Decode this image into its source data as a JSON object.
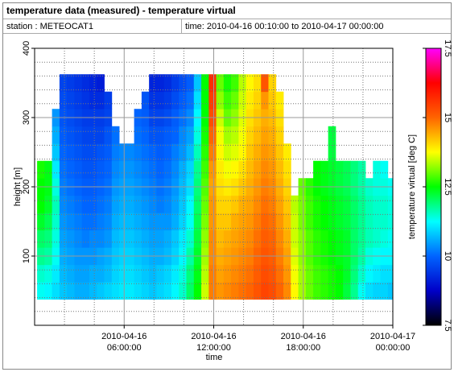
{
  "header": {
    "title": "temperature data (measured) - temperature virtual",
    "station": "station : METEOCAT1",
    "time": "time: 2010-04-16 00:10:00 to 2010-04-17 00:00:00"
  },
  "chart_data": {
    "type": "heatmap",
    "xlabel": "time",
    "ylabel": "height [m]",
    "x": [
      "2010-04-16 00:10:00",
      "2010-04-16 00:40:00",
      "2010-04-16 01:10:00",
      "2010-04-16 01:40:00",
      "2010-04-16 02:10:00",
      "2010-04-16 02:40:00",
      "2010-04-16 03:10:00",
      "2010-04-16 03:40:00",
      "2010-04-16 04:10:00",
      "2010-04-16 04:40:00",
      "2010-04-16 05:10:00",
      "2010-04-16 05:40:00",
      "2010-04-16 06:10:00",
      "2010-04-16 06:40:00",
      "2010-04-16 07:10:00",
      "2010-04-16 07:40:00",
      "2010-04-16 08:10:00",
      "2010-04-16 08:40:00",
      "2010-04-16 09:10:00",
      "2010-04-16 09:40:00",
      "2010-04-16 10:10:00",
      "2010-04-16 10:40:00",
      "2010-04-16 11:10:00",
      "2010-04-16 11:40:00",
      "2010-04-16 12:10:00",
      "2010-04-16 12:40:00",
      "2010-04-16 13:10:00",
      "2010-04-16 13:40:00",
      "2010-04-16 14:10:00",
      "2010-04-16 14:40:00",
      "2010-04-16 15:10:00",
      "2010-04-16 15:40:00",
      "2010-04-16 16:10:00",
      "2010-04-16 16:40:00",
      "2010-04-16 17:10:00",
      "2010-04-16 17:40:00",
      "2010-04-16 18:10:00",
      "2010-04-16 18:40:00",
      "2010-04-16 19:10:00",
      "2010-04-16 19:40:00",
      "2010-04-16 20:10:00",
      "2010-04-16 20:40:00",
      "2010-04-16 21:10:00",
      "2010-04-16 21:40:00",
      "2010-04-16 22:10:00",
      "2010-04-16 22:40:00",
      "2010-04-16 23:10:00",
      "2010-04-16 23:40:00"
    ],
    "y": [
      50,
      75,
      100,
      125,
      150,
      175,
      200,
      225,
      250,
      275,
      300,
      325,
      350
    ],
    "z": [
      [
        11.3,
        11.5,
        11.8,
        12,
        12.3,
        12.5,
        12.5,
        12.6,
        null,
        null,
        null,
        null,
        null
      ],
      [
        11.2,
        11.4,
        11.7,
        11.9,
        12.1,
        12.3,
        12.4,
        12.4,
        null,
        null,
        null,
        null,
        null
      ],
      [
        11,
        11.1,
        11.3,
        11.4,
        11.5,
        11.6,
        11.4,
        11.1,
        10.8,
        10.6,
        10.4,
        null,
        null
      ],
      [
        10.8,
        10.7,
        10.6,
        10.5,
        10.4,
        10.3,
        10.2,
        10.1,
        10,
        9.9,
        9.8,
        9.7,
        9.6
      ],
      [
        10.7,
        10.6,
        10.5,
        10.4,
        10.3,
        10.2,
        10.1,
        10,
        9.9,
        9.8,
        9.7,
        9.6,
        9.5
      ],
      [
        10.6,
        10.5,
        10.4,
        10.3,
        10.2,
        10.1,
        10,
        9.9,
        9.8,
        9.7,
        9.6,
        9.5,
        9.4
      ],
      [
        10.6,
        10.5,
        10.4,
        10.2,
        10.1,
        10,
        9.9,
        9.8,
        9.7,
        9.6,
        9.5,
        9.4,
        9.3
      ],
      [
        10.7,
        10.6,
        10.4,
        10.3,
        10.1,
        10,
        9.9,
        9.8,
        9.7,
        9.6,
        9.5,
        9.3,
        9.2
      ],
      [
        10.8,
        10.6,
        10.5,
        10.3,
        10.2,
        10.1,
        10,
        9.9,
        9.8,
        9.6,
        9.5,
        9.3,
        9.1
      ],
      [
        10.9,
        10.7,
        10.6,
        10.4,
        10.3,
        10.2,
        10.1,
        10,
        9.9,
        9.8,
        9.6,
        9.5,
        null
      ],
      [
        11,
        10.9,
        10.8,
        10.7,
        10.6,
        10.5,
        10.4,
        10.3,
        10.2,
        10.1,
        null,
        null,
        null
      ],
      [
        11.1,
        11,
        10.9,
        10.8,
        10.7,
        10.6,
        10.5,
        10.4,
        10.3,
        null,
        null,
        null,
        null
      ],
      [
        11.1,
        11,
        10.9,
        10.8,
        10.7,
        10.6,
        10.5,
        10.4,
        10.3,
        null,
        null,
        null,
        null
      ],
      [
        11,
        10.9,
        10.8,
        10.7,
        10.6,
        10.5,
        10.4,
        10.3,
        10.2,
        10.1,
        10,
        null,
        null
      ],
      [
        10.9,
        10.8,
        10.7,
        10.6,
        10.5,
        10.4,
        10.3,
        10.2,
        10.1,
        10,
        9.9,
        9.8,
        null
      ],
      [
        10.8,
        10.7,
        10.6,
        10.5,
        10.4,
        10.3,
        10.2,
        10.1,
        10,
        9.8,
        9.6,
        9.4,
        9.2
      ],
      [
        10.9,
        10.8,
        10.6,
        10.5,
        10.4,
        10.2,
        10.1,
        10,
        9.9,
        9.8,
        9.6,
        9.4,
        9.2
      ],
      [
        11,
        10.9,
        10.7,
        10.6,
        10.4,
        10.3,
        10.2,
        10.1,
        10,
        9.9,
        9.7,
        9.5,
        9.3
      ],
      [
        11.2,
        11.1,
        10.9,
        10.8,
        10.6,
        10.5,
        10.4,
        10.3,
        10.2,
        10,
        9.9,
        9.7,
        9.5
      ],
      [
        11.5,
        11.4,
        11.2,
        11.1,
        10.9,
        10.8,
        10.7,
        10.6,
        10.4,
        10.3,
        10.1,
        9.9,
        9.7
      ],
      [
        12,
        11.9,
        11.7,
        11.5,
        11.3,
        11.2,
        11,
        10.9,
        10.7,
        10.5,
        10.3,
        10.1,
        9.9
      ],
      [
        12.5,
        12.4,
        12.3,
        12.2,
        12.1,
        12,
        11.9,
        11.8,
        11.6,
        11.4,
        11.2,
        11,
        10.8
      ],
      [
        13.5,
        13.4,
        13.3,
        13.2,
        13.1,
        13,
        12.9,
        12.8,
        12.7,
        12.6,
        12.5,
        12.5,
        12.5
      ],
      [
        14.8,
        14.8,
        14.7,
        14.7,
        14.6,
        14.6,
        14.5,
        14.6,
        14.8,
        15,
        15.3,
        15.5,
        15.7
      ],
      [
        14.6,
        14.5,
        14.4,
        14.3,
        14.2,
        14.1,
        14,
        13.9,
        13.8,
        13.7,
        13.5,
        13.2,
        13
      ],
      [
        14.7,
        14.6,
        14.5,
        14.4,
        14.2,
        14.1,
        13.9,
        13.7,
        13.5,
        13.3,
        13,
        12.8,
        12.6
      ],
      [
        14.8,
        14.7,
        14.6,
        14.5,
        14.4,
        14.2,
        14,
        13.8,
        13.6,
        13.4,
        13.2,
        13,
        12.8
      ],
      [
        14.9,
        14.8,
        14.7,
        14.6,
        14.5,
        14.4,
        14.2,
        14,
        13.8,
        13.7,
        13.6,
        13.5,
        13.4
      ],
      [
        15,
        14.9,
        14.8,
        14.7,
        14.6,
        14.5,
        14.4,
        14.3,
        14.2,
        14.1,
        14,
        13.9,
        13.8
      ],
      [
        15.2,
        15.1,
        15,
        14.9,
        14.8,
        14.7,
        14.6,
        14.5,
        14.4,
        14.3,
        14.2,
        14.1,
        14
      ],
      [
        15.4,
        15.3,
        15.2,
        15.1,
        15,
        14.9,
        14.8,
        14.7,
        14.6,
        14.5,
        14.4,
        14.6,
        15.2
      ],
      [
        15.3,
        15.2,
        15.1,
        15,
        14.9,
        14.8,
        14.7,
        14.6,
        14.5,
        14.4,
        14.3,
        14.2,
        14.1
      ],
      [
        15,
        14.9,
        14.8,
        14.7,
        14.6,
        14.5,
        14.4,
        14.3,
        14.2,
        14.1,
        14,
        13.9,
        null
      ],
      [
        14.7,
        14.6,
        14.5,
        14.4,
        14.3,
        14.2,
        14.1,
        14,
        13.9,
        null,
        null,
        null,
        null
      ],
      [
        13.8,
        13.7,
        13.6,
        13.5,
        13.5,
        13.4,
        null,
        null,
        null,
        null,
        null,
        null,
        null
      ],
      [
        13.3,
        13.3,
        13.2,
        13.2,
        13.1,
        13.1,
        13,
        null,
        null,
        null,
        null,
        null,
        null
      ],
      [
        13,
        13,
        12.9,
        12.9,
        12.8,
        12.8,
        12.7,
        null,
        null,
        null,
        null,
        null,
        null
      ],
      [
        12.8,
        12.8,
        12.7,
        12.7,
        12.6,
        12.6,
        12.5,
        12.5,
        null,
        null,
        null,
        null,
        null
      ],
      [
        12.7,
        12.7,
        12.6,
        12.6,
        12.5,
        12.5,
        12.4,
        12.4,
        null,
        null,
        null,
        null,
        null
      ],
      [
        12.6,
        12.6,
        12.5,
        12.5,
        12.4,
        12.4,
        12.3,
        12.3,
        12.2,
        12.2,
        null,
        null,
        null
      ],
      [
        12.5,
        12.5,
        12.4,
        12.4,
        12.3,
        12.3,
        12.2,
        12.2,
        null,
        null,
        null,
        null,
        null
      ],
      [
        12.2,
        12.3,
        12.3,
        12.3,
        12.2,
        12.2,
        12.1,
        12.1,
        null,
        null,
        null,
        null,
        null
      ],
      [
        11.8,
        11.9,
        12,
        12,
        12,
        12,
        11.9,
        11.9,
        null,
        null,
        null,
        null,
        null
      ],
      [
        11.3,
        11.5,
        11.7,
        11.8,
        11.8,
        11.8,
        11.7,
        11.7,
        null,
        null,
        null,
        null,
        null
      ],
      [
        11,
        11.2,
        11.4,
        11.6,
        11.6,
        11.6,
        11.5,
        null,
        null,
        null,
        null,
        null,
        null
      ],
      [
        10.9,
        11.1,
        11.3,
        11.5,
        11.5,
        11.5,
        11.4,
        11.4,
        null,
        null,
        null,
        null,
        null
      ],
      [
        10.9,
        11,
        11.2,
        11.4,
        11.5,
        11.5,
        11.4,
        11.3,
        null,
        null,
        null,
        null,
        null
      ],
      [
        10.8,
        11,
        11.2,
        11.3,
        11.4,
        11.4,
        11.3,
        null,
        null,
        null,
        null,
        null,
        null
      ]
    ],
    "xlim": [
      "2010-04-16 00:00:00",
      "2010-04-17 00:00:00"
    ],
    "xticks": [
      "2010-04-16 06:00:00",
      "2010-04-16 12:00:00",
      "2010-04-16 18:00:00",
      "2010-04-17 00:00:00"
    ],
    "xminor": [
      "2010-04-16 02:00:00",
      "2010-04-16 04:00:00",
      "2010-04-16 08:00:00",
      "2010-04-16 10:00:00",
      "2010-04-16 14:00:00",
      "2010-04-16 16:00:00",
      "2010-04-16 20:00:00",
      "2010-04-16 22:00:00"
    ],
    "ylim": [
      0,
      400
    ],
    "yticks": [
      100,
      200,
      300,
      400
    ],
    "yminor": [
      20,
      40,
      60,
      80,
      120,
      140,
      160,
      180,
      220,
      240,
      260,
      280,
      320,
      340,
      360,
      380
    ],
    "grid": true,
    "colorbar": {
      "label": "temperature virtual [deg C]",
      "lim": [
        7.5,
        17.5
      ],
      "ticks": [
        7.5,
        10,
        12.5,
        15,
        17.5
      ],
      "colors": [
        "#000000",
        "#0000c8",
        "#0064ff",
        "#00ffff",
        "#00ff00",
        "#ffff00",
        "#ff6400",
        "#ff0000",
        "#ff00ff"
      ]
    }
  }
}
